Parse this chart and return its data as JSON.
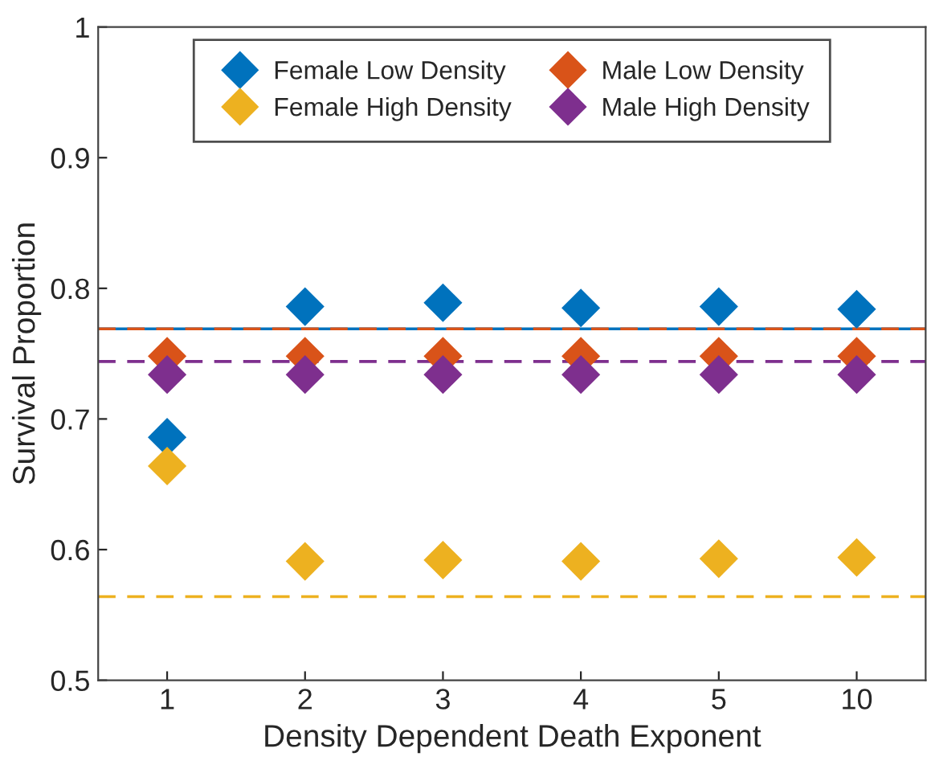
{
  "chart_data": {
    "type": "scatter",
    "xlabel": "Density Dependent Death Exponent",
    "ylabel": "Survival Proportion",
    "categories": [
      "1",
      "2",
      "3",
      "4",
      "5",
      "10"
    ],
    "series": [
      {
        "name": "Female Low Density",
        "color": "#0072bd",
        "values": [
          0.686,
          0.786,
          0.789,
          0.785,
          0.786,
          0.784
        ]
      },
      {
        "name": "Male Low Density",
        "color": "#d95319",
        "values": [
          0.748,
          0.748,
          0.748,
          0.748,
          0.748,
          0.748
        ]
      },
      {
        "name": "Female High Density",
        "color": "#edb120",
        "values": [
          0.664,
          0.591,
          0.592,
          0.591,
          0.593,
          0.594
        ]
      },
      {
        "name": "Male High Density",
        "color": "#7e2f8e",
        "values": [
          0.734,
          0.734,
          0.734,
          0.734,
          0.734,
          0.734
        ]
      }
    ],
    "ref_lines": [
      {
        "axis": "y",
        "value": 0.769,
        "color": "#0072bd",
        "line_style": "solid"
      },
      {
        "axis": "y",
        "value": 0.769,
        "color": "#d95319",
        "line_style": "dashed"
      },
      {
        "axis": "y",
        "value": 0.744,
        "color": "#7e2f8e",
        "line_style": "dashed"
      },
      {
        "axis": "y",
        "value": 0.564,
        "color": "#edb120",
        "line_style": "dashed"
      }
    ],
    "ylim": [
      0.5,
      1
    ],
    "yticks": [
      0.5,
      0.6,
      0.7,
      0.8,
      0.9,
      1
    ],
    "marker": "diamond",
    "legend": "top",
    "grid": false
  }
}
